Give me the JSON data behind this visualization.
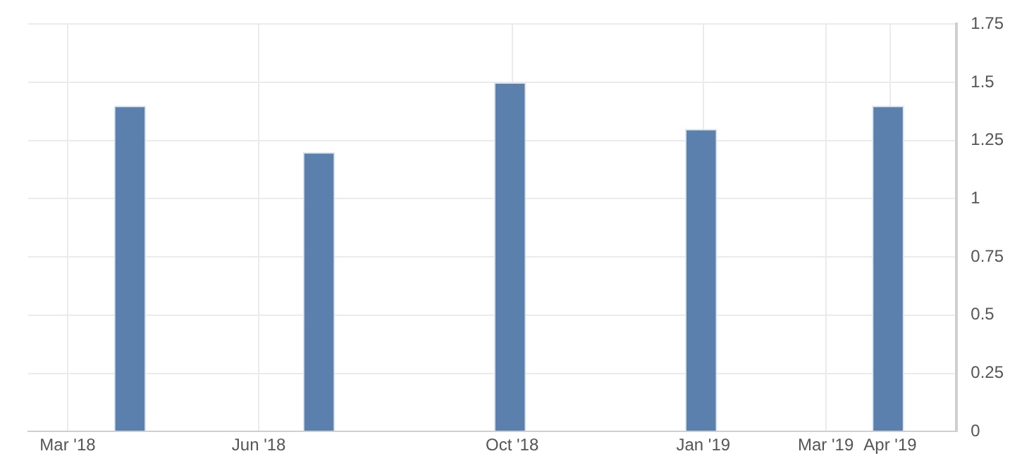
{
  "chart_data": {
    "type": "bar",
    "x": [
      "2018-03-31",
      "2018-06-30",
      "2018-09-30",
      "2018-12-31",
      "2019-03-31"
    ],
    "values": [
      1.4,
      1.2,
      1.5,
      1.3,
      1.4
    ],
    "color": "#5b80ad",
    "xlim": [
      "2018-02-10",
      "2019-05-03"
    ],
    "xticks": [
      {
        "value": "2018-03",
        "label": "Mar '18"
      },
      {
        "value": "2018-06",
        "label": "Jun '18"
      },
      {
        "value": "2018-10",
        "label": "Oct '18"
      },
      {
        "value": "2019-01",
        "label": "Jan '19"
      },
      {
        "value": "2019-03",
        "label": "Mar '19"
      },
      {
        "value": "2019-04",
        "label": "Apr '19"
      }
    ],
    "ylim": [
      0,
      1.75
    ],
    "yticks": [
      0,
      0.25,
      0.5,
      0.75,
      1,
      1.25,
      1.5,
      1.75
    ],
    "grid": true,
    "legend": false
  }
}
